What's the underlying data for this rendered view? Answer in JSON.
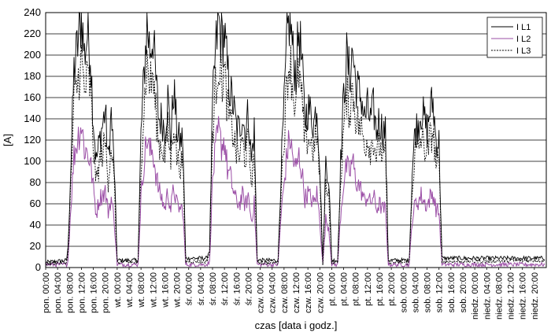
{
  "chart_data": {
    "type": "line",
    "xlabel": "czas [data i godz.]",
    "ylabel": "[A]",
    "ylim": [
      0,
      240
    ],
    "yticks": [
      0,
      20,
      40,
      60,
      80,
      100,
      120,
      140,
      160,
      180,
      200,
      220,
      240
    ],
    "grid": "horizontal",
    "legend_position": "top-right",
    "x_tick_labels": [
      "pon. 00:00",
      "pon. 04:00",
      "pon. 08:00",
      "pon. 12:00",
      "pon. 16:00",
      "pon. 20:00",
      "wt. 00:00",
      "wt. 04:00",
      "wt. 08:00",
      "wt. 12:00",
      "wt. 16:00",
      "wt. 20:00",
      "śr. 00:00",
      "śr. 04:00",
      "śr. 08:00",
      "śr. 12:00",
      "śr. 16:00",
      "śr. 20:00",
      "czw. 00:00",
      "czw. 04:00",
      "czw. 08:00",
      "czw. 12:00",
      "czw. 16:00",
      "czw. 20:00",
      "pt. 00:00",
      "pt. 04:00",
      "pt. 08:00",
      "pt. 12:00",
      "pt. 16:00",
      "pt. 20:00",
      "sob. 00:00",
      "sob. 04:00",
      "sob. 08:00",
      "sob. 12:00",
      "sob. 16:00",
      "sob. 20:00",
      "niedz. 00:00",
      "niedz. 04:00",
      "niedz. 08:00",
      "niedz. 12:00",
      "niedz. 16:00",
      "niedz. 20:00"
    ],
    "hours_per_tick": 4,
    "series": [
      {
        "name": "I L1",
        "color": "#000000",
        "dash": "solid",
        "profile": [
          [
            0,
            4
          ],
          [
            7,
            6
          ],
          [
            7.5,
            18
          ],
          [
            8.5,
            100
          ],
          [
            9.5,
            185
          ],
          [
            11,
            215
          ],
          [
            12,
            238
          ],
          [
            13,
            200
          ],
          [
            14,
            220
          ],
          [
            15,
            205
          ],
          [
            16,
            140
          ],
          [
            17,
            100
          ],
          [
            18,
            118
          ],
          [
            20,
            148
          ],
          [
            21,
            100
          ],
          [
            22,
            145
          ],
          [
            23,
            95
          ],
          [
            24,
            6
          ],
          [
            31,
            6
          ],
          [
            32,
            125
          ],
          [
            33,
            180
          ],
          [
            34,
            230
          ],
          [
            35,
            205
          ],
          [
            36,
            220
          ],
          [
            37,
            175
          ],
          [
            38,
            140
          ],
          [
            39,
            140
          ],
          [
            40,
            130
          ],
          [
            41,
            160
          ],
          [
            42,
            120
          ],
          [
            43,
            170
          ],
          [
            44,
            130
          ],
          [
            45,
            118
          ],
          [
            46,
            122
          ],
          [
            47,
            8
          ],
          [
            54,
            8
          ],
          [
            55,
            16
          ],
          [
            56,
            150
          ],
          [
            57,
            202
          ],
          [
            58,
            232
          ],
          [
            59,
            215
          ],
          [
            60,
            220
          ],
          [
            61,
            185
          ],
          [
            62,
            165
          ],
          [
            63,
            152
          ],
          [
            64,
            132
          ],
          [
            65,
            130
          ],
          [
            66,
            145
          ],
          [
            67,
            125
          ],
          [
            68,
            148
          ],
          [
            69,
            100
          ],
          [
            70,
            130
          ],
          [
            71,
            6
          ],
          [
            78,
            6
          ],
          [
            79,
            92
          ],
          [
            80,
            150
          ],
          [
            81,
            215
          ],
          [
            82,
            238
          ],
          [
            83,
            200
          ],
          [
            84,
            182
          ],
          [
            85,
            225
          ],
          [
            86,
            190
          ],
          [
            87,
            140
          ],
          [
            88,
            150
          ],
          [
            89,
            145
          ],
          [
            90,
            135
          ],
          [
            91,
            155
          ],
          [
            92,
            100
          ],
          [
            93,
            2
          ],
          [
            94,
            100
          ],
          [
            95,
            85
          ],
          [
            96,
            6
          ],
          [
            98,
            6
          ],
          [
            99,
            100
          ],
          [
            100,
            160
          ],
          [
            101,
            198
          ],
          [
            102,
            180
          ],
          [
            103,
            205
          ],
          [
            104,
            175
          ],
          [
            105,
            165
          ],
          [
            106,
            160
          ],
          [
            107,
            140
          ],
          [
            108,
            150
          ],
          [
            109,
            138
          ],
          [
            110,
            150
          ],
          [
            111,
            128
          ],
          [
            112,
            140
          ],
          [
            113,
            130
          ],
          [
            114,
            128
          ],
          [
            115,
            6
          ],
          [
            122,
            6
          ],
          [
            123,
            90
          ],
          [
            124,
            130
          ],
          [
            125,
            135
          ],
          [
            126,
            148
          ],
          [
            127,
            140
          ],
          [
            128,
            128
          ],
          [
            129,
            150
          ],
          [
            130,
            155
          ],
          [
            131,
            120
          ],
          [
            132,
            118
          ],
          [
            133,
            8
          ],
          [
            140,
            8
          ],
          [
            167,
            8
          ]
        ]
      },
      {
        "name": "I L2",
        "color": "#9b4ea6",
        "dash": "solid",
        "profile": [
          [
            0,
            2
          ],
          [
            7,
            2
          ],
          [
            7.5,
            6
          ],
          [
            8.5,
            60
          ],
          [
            9.5,
            105
          ],
          [
            11,
            125
          ],
          [
            12,
            135
          ],
          [
            13,
            112
          ],
          [
            14,
            108
          ],
          [
            15,
            100
          ],
          [
            16,
            75
          ],
          [
            17,
            50
          ],
          [
            18,
            65
          ],
          [
            20,
            72
          ],
          [
            21,
            52
          ],
          [
            22,
            65
          ],
          [
            23,
            45
          ],
          [
            24,
            2
          ],
          [
            31,
            2
          ],
          [
            32,
            65
          ],
          [
            33,
            100
          ],
          [
            34,
            122
          ],
          [
            35,
            108
          ],
          [
            36,
            110
          ],
          [
            37,
            88
          ],
          [
            38,
            72
          ],
          [
            39,
            65
          ],
          [
            40,
            55
          ],
          [
            41,
            72
          ],
          [
            42,
            55
          ],
          [
            43,
            75
          ],
          [
            44,
            60
          ],
          [
            45,
            55
          ],
          [
            46,
            56
          ],
          [
            47,
            2
          ],
          [
            54,
            2
          ],
          [
            55,
            4
          ],
          [
            56,
            82
          ],
          [
            57,
            110
          ],
          [
            58,
            128
          ],
          [
            59,
            115
          ],
          [
            60,
            120
          ],
          [
            61,
            92
          ],
          [
            62,
            85
          ],
          [
            63,
            72
          ],
          [
            64,
            62
          ],
          [
            65,
            60
          ],
          [
            66,
            68
          ],
          [
            67,
            58
          ],
          [
            68,
            68
          ],
          [
            69,
            45
          ],
          [
            70,
            60
          ],
          [
            71,
            2
          ],
          [
            78,
            2
          ],
          [
            79,
            50
          ],
          [
            80,
            78
          ],
          [
            81,
            108
          ],
          [
            82,
            122
          ],
          [
            83,
            102
          ],
          [
            84,
            92
          ],
          [
            85,
            105
          ],
          [
            86,
            90
          ],
          [
            87,
            65
          ],
          [
            88,
            70
          ],
          [
            89,
            65
          ],
          [
            90,
            60
          ],
          [
            91,
            70
          ],
          [
            92,
            45
          ],
          [
            93,
            2
          ],
          [
            94,
            45
          ],
          [
            95,
            38
          ],
          [
            96,
            2
          ],
          [
            98,
            2
          ],
          [
            99,
            50
          ],
          [
            100,
            80
          ],
          [
            101,
            95
          ],
          [
            102,
            88
          ],
          [
            103,
            102
          ],
          [
            104,
            82
          ],
          [
            105,
            78
          ],
          [
            106,
            72
          ],
          [
            107,
            62
          ],
          [
            108,
            68
          ],
          [
            109,
            60
          ],
          [
            110,
            68
          ],
          [
            111,
            55
          ],
          [
            112,
            60
          ],
          [
            113,
            55
          ],
          [
            114,
            55
          ],
          [
            115,
            2
          ],
          [
            122,
            2
          ],
          [
            123,
            45
          ],
          [
            124,
            60
          ],
          [
            125,
            62
          ],
          [
            126,
            68
          ],
          [
            127,
            62
          ],
          [
            128,
            58
          ],
          [
            129,
            66
          ],
          [
            130,
            70
          ],
          [
            131,
            55
          ],
          [
            132,
            52
          ],
          [
            133,
            2
          ],
          [
            140,
            2
          ],
          [
            167,
            2
          ]
        ]
      },
      {
        "name": "I L3",
        "color": "#000000",
        "dash": "dashed",
        "profile": [
          [
            0,
            3
          ],
          [
            7,
            4
          ],
          [
            7.5,
            12
          ],
          [
            8.5,
            80
          ],
          [
            9.5,
            155
          ],
          [
            11,
            178
          ],
          [
            12,
            195
          ],
          [
            13,
            165
          ],
          [
            14,
            178
          ],
          [
            15,
            168
          ],
          [
            16,
            115
          ],
          [
            17,
            80
          ],
          [
            18,
            98
          ],
          [
            20,
            118
          ],
          [
            21,
            82
          ],
          [
            22,
            118
          ],
          [
            23,
            78
          ],
          [
            24,
            4
          ],
          [
            31,
            4
          ],
          [
            32,
            100
          ],
          [
            33,
            150
          ],
          [
            34,
            192
          ],
          [
            35,
            172
          ],
          [
            36,
            180
          ],
          [
            37,
            145
          ],
          [
            38,
            115
          ],
          [
            39,
            115
          ],
          [
            40,
            105
          ],
          [
            41,
            130
          ],
          [
            42,
            100
          ],
          [
            43,
            140
          ],
          [
            44,
            105
          ],
          [
            45,
            96
          ],
          [
            46,
            100
          ],
          [
            47,
            5
          ],
          [
            54,
            5
          ],
          [
            55,
            12
          ],
          [
            56,
            125
          ],
          [
            57,
            168
          ],
          [
            58,
            195
          ],
          [
            59,
            178
          ],
          [
            60,
            182
          ],
          [
            61,
            152
          ],
          [
            62,
            135
          ],
          [
            63,
            125
          ],
          [
            64,
            108
          ],
          [
            65,
            105
          ],
          [
            66,
            118
          ],
          [
            67,
            102
          ],
          [
            68,
            120
          ],
          [
            69,
            82
          ],
          [
            70,
            105
          ],
          [
            71,
            4
          ],
          [
            78,
            4
          ],
          [
            79,
            75
          ],
          [
            80,
            122
          ],
          [
            81,
            178
          ],
          [
            82,
            198
          ],
          [
            83,
            165
          ],
          [
            84,
            150
          ],
          [
            85,
            185
          ],
          [
            86,
            155
          ],
          [
            87,
            115
          ],
          [
            88,
            122
          ],
          [
            89,
            118
          ],
          [
            90,
            110
          ],
          [
            91,
            128
          ],
          [
            92,
            82
          ],
          [
            93,
            2
          ],
          [
            94,
            82
          ],
          [
            95,
            70
          ],
          [
            96,
            4
          ],
          [
            98,
            4
          ],
          [
            99,
            82
          ],
          [
            100,
            130
          ],
          [
            101,
            162
          ],
          [
            102,
            148
          ],
          [
            103,
            168
          ],
          [
            104,
            143
          ],
          [
            105,
            135
          ],
          [
            106,
            130
          ],
          [
            107,
            115
          ],
          [
            108,
            122
          ],
          [
            109,
            112
          ],
          [
            110,
            122
          ],
          [
            111,
            105
          ],
          [
            112,
            115
          ],
          [
            113,
            106
          ],
          [
            114,
            105
          ],
          [
            115,
            4
          ],
          [
            122,
            4
          ],
          [
            123,
            75
          ],
          [
            124,
            108
          ],
          [
            125,
            110
          ],
          [
            126,
            122
          ],
          [
            127,
            115
          ],
          [
            128,
            105
          ],
          [
            129,
            122
          ],
          [
            130,
            128
          ],
          [
            131,
            98
          ],
          [
            132,
            96
          ],
          [
            133,
            5
          ],
          [
            140,
            5
          ],
          [
            167,
            6
          ]
        ]
      }
    ]
  }
}
